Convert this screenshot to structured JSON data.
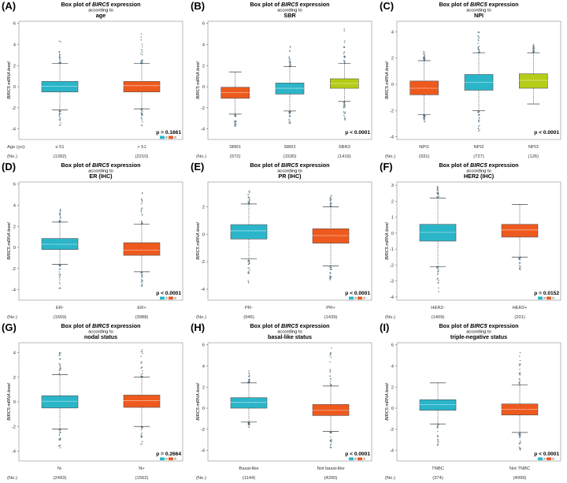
{
  "chart_data": [
    {
      "panel": "(A)",
      "type": "box",
      "title": "Box plot of BIRC5 expression",
      "title_prefix": "Box plot of ",
      "gene": "BIRC5",
      "title_suffix": " expression",
      "according": "according to",
      "variable": "age",
      "ylabel": "BIRC5 mRNA level",
      "ylim": [
        -5,
        6.2
      ],
      "yticks": [
        -4,
        -2,
        0,
        2,
        4,
        6
      ],
      "row_label": "Age (yo):",
      "groups": [
        {
          "label": "≤ 51",
          "n": "(1392)",
          "color": "#2bb5c9",
          "q1": -0.5,
          "median": 0.05,
          "q3": 0.5,
          "wlo": -2.2,
          "whi": 2.2,
          "omin": -3.8,
          "omax": 4.5
        },
        {
          "label": "> 51",
          "n": "(2210)",
          "color": "#ee5a1e",
          "q1": -0.5,
          "median": 0.1,
          "q3": 0.5,
          "wlo": -2.1,
          "whi": 2.2,
          "omin": -4.0,
          "omax": 5.6
        }
      ],
      "pvalue": "p = 0.1661",
      "legend_sym": [
        ">",
        ">"
      ],
      "legend_colors": [
        "#2bb5c9",
        "#ee5a1e"
      ]
    },
    {
      "panel": "(B)",
      "type": "box",
      "title": "Box plot of BIRC5 expression",
      "title_prefix": "Box plot of ",
      "gene": "BIRC5",
      "title_suffix": " expression",
      "according": "according to",
      "variable": "SBR",
      "ylabel": "BIRC5 mRNA level",
      "ylim": [
        -5,
        6.2
      ],
      "yticks": [
        -4,
        -2,
        0,
        2,
        4,
        6
      ],
      "row_label": "",
      "groups": [
        {
          "label": "SBR1",
          "n": "(572)",
          "color": "#ee5a1e",
          "q1": -1.1,
          "median": -0.55,
          "q3": -0.05,
          "wlo": -2.6,
          "whi": 1.4,
          "omin": -3.8,
          "omax": 1.7
        },
        {
          "label": "SBR2",
          "n": "(1530)",
          "color": "#2bb5c9",
          "q1": -0.7,
          "median": -0.15,
          "q3": 0.35,
          "wlo": -2.3,
          "whi": 1.9,
          "omin": -3.5,
          "omax": 4.4
        },
        {
          "label": "SBR3",
          "n": "(1419)",
          "color": "#b5cc18",
          "q1": -0.15,
          "median": 0.3,
          "q3": 0.75,
          "wlo": -1.4,
          "whi": 2.2,
          "omin": -3.2,
          "omax": 5.7
        }
      ],
      "pvalue": "p < 0.0001",
      "legend_sym": [],
      "legend_colors": []
    },
    {
      "panel": "(C)",
      "type": "box",
      "title": "Box plot of BIRC5 expression",
      "title_prefix": "Box plot of ",
      "gene": "BIRC5",
      "title_suffix": " expression",
      "according": "according to",
      "variable": "NPI",
      "ylabel": "BIRC5 mRNA level",
      "ylim": [
        -4.2,
        4.8
      ],
      "yticks": [
        -4,
        -2,
        0,
        2,
        4
      ],
      "row_label": "",
      "groups": [
        {
          "label": "NPI1",
          "n": "(931)",
          "color": "#ee5a1e",
          "q1": -0.8,
          "median": -0.3,
          "q3": 0.25,
          "wlo": -2.3,
          "whi": 1.8,
          "omin": -2.9,
          "omax": 2.5
        },
        {
          "label": "NPI2",
          "n": "(727)",
          "color": "#2bb5c9",
          "q1": -0.45,
          "median": 0.15,
          "q3": 0.75,
          "wlo": -2.0,
          "whi": 2.4,
          "omin": -3.6,
          "omax": 4.3
        },
        {
          "label": "NPI3",
          "n": "(126)",
          "color": "#b5cc18",
          "q1": -0.3,
          "median": 0.3,
          "q3": 0.8,
          "wlo": -1.5,
          "whi": 2.4,
          "omin": -1.5,
          "omax": 3.1
        }
      ],
      "pvalue": "p < 0.0001",
      "legend_sym": [],
      "legend_colors": []
    },
    {
      "panel": "(D)",
      "type": "box",
      "title": "Box plot of BIRC5 expression",
      "title_prefix": "Box plot of ",
      "gene": "BIRC5",
      "title_suffix": " expression",
      "according": "according to",
      "variable": "ER (IHC)",
      "ylabel": "BIRC5 mRNA level",
      "ylim": [
        -5,
        6.2
      ],
      "yticks": [
        -4,
        -2,
        0,
        2,
        4,
        6
      ],
      "row_label": "",
      "groups": [
        {
          "label": "ER-",
          "n": "(1559)",
          "color": "#2bb5c9",
          "q1": -0.2,
          "median": 0.3,
          "q3": 0.85,
          "wlo": -1.6,
          "whi": 2.4,
          "omin": -3.9,
          "omax": 3.6
        },
        {
          "label": "ER+",
          "n": "(3988)",
          "color": "#ee5a1e",
          "q1": -0.75,
          "median": -0.25,
          "q3": 0.45,
          "wlo": -2.3,
          "whi": 2.2,
          "omin": -4.0,
          "omax": 5.7
        }
      ],
      "pvalue": "p < 0.0001",
      "legend_sym": [
        ">",
        ">"
      ],
      "legend_colors": [
        "#2bb5c9",
        "#ee5a1e"
      ]
    },
    {
      "panel": "(E)",
      "type": "box",
      "title": "Box plot of BIRC5 expression",
      "title_prefix": "Box plot of ",
      "gene": "BIRC5",
      "title_suffix": " expression",
      "according": "according to",
      "variable": "PR (IHC)",
      "ylabel": "BIRC5 mRNA level",
      "ylim": [
        -4.8,
        3.8
      ],
      "yticks": [
        -4,
        -2,
        0,
        2
      ],
      "row_label": "",
      "groups": [
        {
          "label": "PR-",
          "n": "(946)",
          "color": "#2bb5c9",
          "q1": -0.35,
          "median": 0.25,
          "q3": 0.7,
          "wlo": -1.8,
          "whi": 2.2,
          "omin": -3.6,
          "omax": 3.2
        },
        {
          "label": "PR+",
          "n": "(1439)",
          "color": "#ee5a1e",
          "q1": -0.65,
          "median": -0.1,
          "q3": 0.4,
          "wlo": -2.3,
          "whi": 2.0,
          "omin": -3.4,
          "omax": 3.0
        }
      ],
      "pvalue": "p < 0.0001",
      "legend_sym": [
        ">",
        ">"
      ],
      "legend_colors": [
        "#2bb5c9",
        "#ee5a1e"
      ]
    },
    {
      "panel": "(F)",
      "type": "box",
      "title": "Box plot of BIRC5 expression",
      "title_prefix": "Box plot of ",
      "gene": "BIRC5",
      "title_suffix": " expression",
      "according": "according to",
      "variable": "HER2 (IHC)",
      "ylabel": "BIRC5 mRNA level",
      "ylim": [
        -4.2,
        3.2
      ],
      "yticks": [
        -4,
        -3,
        -2,
        -1,
        0,
        1,
        2,
        3
      ],
      "row_label": "",
      "groups": [
        {
          "label": "HER2-",
          "n": "(1409)",
          "color": "#2bb5c9",
          "q1": -0.5,
          "median": 0.05,
          "q3": 0.55,
          "wlo": -2.1,
          "whi": 2.2,
          "omin": -3.9,
          "omax": 3.0
        },
        {
          "label": "HER2+",
          "n": "(201)",
          "color": "#ee5a1e",
          "q1": -0.25,
          "median": 0.2,
          "q3": 0.55,
          "wlo": -1.5,
          "whi": 1.8,
          "omin": -2.3,
          "omax": 1.8
        }
      ],
      "pvalue": "p = 0.0152",
      "legend_sym": [
        ">",
        ">"
      ],
      "legend_colors": [
        "#2bb5c9",
        "#ee5a1e"
      ]
    },
    {
      "panel": "(G)",
      "type": "box",
      "title": "Box plot of BIRC5 expression",
      "title_prefix": "Box plot of ",
      "gene": "BIRC5",
      "title_suffix": " expression",
      "according": "according to",
      "variable": "nodal status",
      "ylabel": "BIRC5 mRNA level",
      "ylim": [
        -4.8,
        4.8
      ],
      "yticks": [
        -4,
        -2,
        0,
        2,
        4
      ],
      "row_label": "",
      "groups": [
        {
          "label": "N-",
          "n": "(2493)",
          "color": "#2bb5c9",
          "q1": -0.5,
          "median": 0.05,
          "q3": 0.5,
          "wlo": -2.2,
          "whi": 2.2,
          "omin": -3.8,
          "omax": 4.0
        },
        {
          "label": "N+",
          "n": "(1562)",
          "color": "#ee5a1e",
          "q1": -0.45,
          "median": 0.1,
          "q3": 0.55,
          "wlo": -2.0,
          "whi": 2.0,
          "omin": -3.5,
          "omax": 4.3
        }
      ],
      "pvalue": "p = 0.2664",
      "legend_sym": [
        ">",
        ">"
      ],
      "legend_colors": [
        "#2bb5c9",
        "#ee5a1e"
      ]
    },
    {
      "panel": "(H)",
      "type": "box",
      "title": "Box plot of BIRC5 expression",
      "title_prefix": "Box plot of ",
      "gene": "BIRC5",
      "title_suffix": " expression",
      "according": "according to",
      "variable": "basal-like status",
      "ylabel": "BIRC5 mRNA level",
      "ylim": [
        -5,
        6.2
      ],
      "yticks": [
        -4,
        -2,
        0,
        2,
        4,
        6
      ],
      "row_label": "",
      "groups": [
        {
          "label": "Basal-like",
          "n": "(1144)",
          "color": "#2bb5c9",
          "q1": 0.0,
          "median": 0.55,
          "q3": 1.0,
          "wlo": -1.3,
          "whi": 2.4,
          "omin": -1.8,
          "omax": 3.9
        },
        {
          "label": "Not basal-like",
          "n": "(4200)",
          "color": "#ee5a1e",
          "q1": -0.7,
          "median": -0.2,
          "q3": 0.35,
          "wlo": -2.2,
          "whi": 2.1,
          "omin": -4.0,
          "omax": 5.7
        }
      ],
      "pvalue": "p < 0.0001",
      "legend_sym": [
        ">",
        ">"
      ],
      "legend_colors": [
        "#2bb5c9",
        "#ee5a1e"
      ]
    },
    {
      "panel": "(I)",
      "type": "box",
      "title": "Box plot of BIRC5 expression",
      "title_prefix": "Box plot of ",
      "gene": "BIRC5",
      "title_suffix": " expression",
      "according": "according to",
      "variable": "triple-negative status",
      "ylabel": "BIRC5 mRNA level",
      "ylim": [
        -5,
        6.2
      ],
      "yticks": [
        -4,
        -2,
        0,
        2,
        4,
        6
      ],
      "row_label": "",
      "groups": [
        {
          "label": "TNBC",
          "n": "(374)",
          "color": "#2bb5c9",
          "q1": -0.2,
          "median": 0.35,
          "q3": 0.8,
          "wlo": -1.5,
          "whi": 2.4,
          "omin": -3.6,
          "omax": 2.5
        },
        {
          "label": "Not TNBC",
          "n": "(4999)",
          "color": "#ee5a1e",
          "q1": -0.65,
          "median": -0.1,
          "q3": 0.4,
          "wlo": -2.3,
          "whi": 2.2,
          "omin": -4.0,
          "omax": 5.7
        }
      ],
      "pvalue": "p < 0.0001",
      "legend_sym": [
        ">",
        ">"
      ],
      "legend_colors": [
        "#2bb5c9",
        "#ee5a1e"
      ]
    }
  ],
  "footer": {
    "n_label": "(No.)"
  }
}
